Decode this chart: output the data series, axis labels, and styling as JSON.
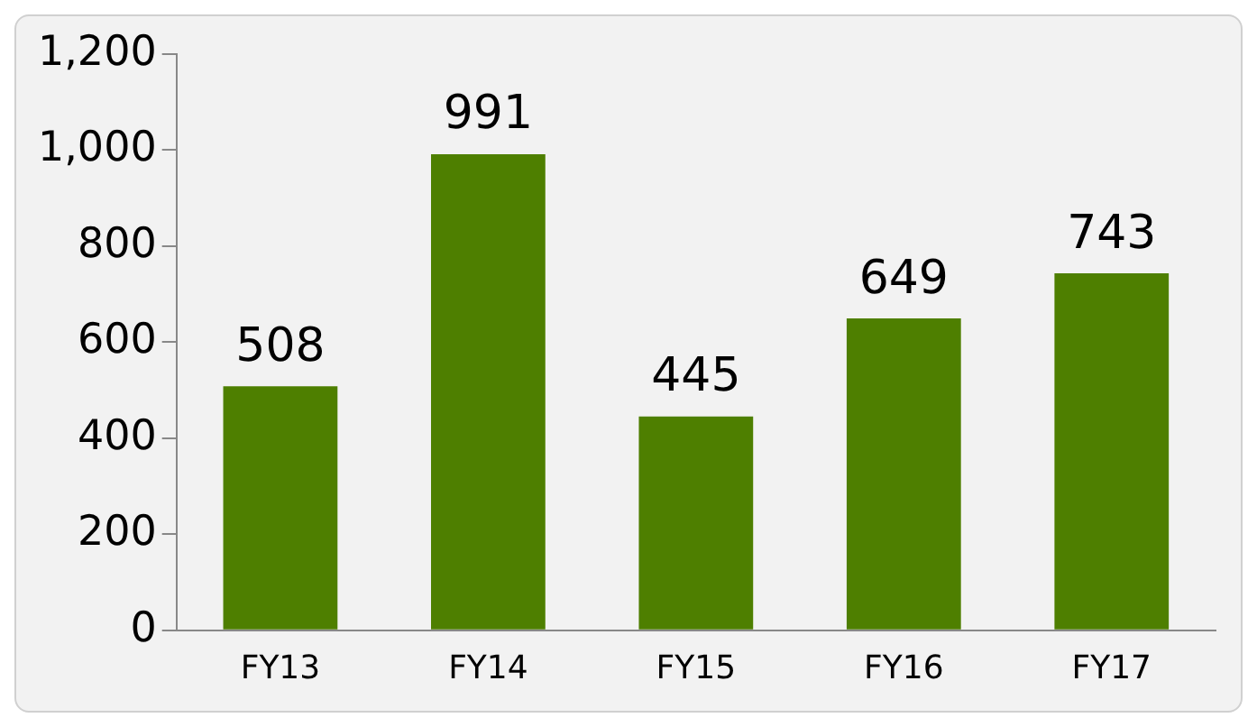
{
  "chart_data": {
    "type": "bar",
    "categories": [
      "FY13",
      "FY14",
      "FY15",
      "FY16",
      "FY17"
    ],
    "values": [
      508,
      991,
      445,
      649,
      743
    ],
    "color": "#4e7f00",
    "ylim": [
      0,
      1200
    ],
    "yticks": [
      0,
      200,
      400,
      600,
      800,
      {
        "value": 1000,
        "label": "1,000"
      },
      {
        "value": 1200,
        "label": "1,200"
      }
    ],
    "grid": false,
    "legend": false,
    "data_labels": true
  }
}
